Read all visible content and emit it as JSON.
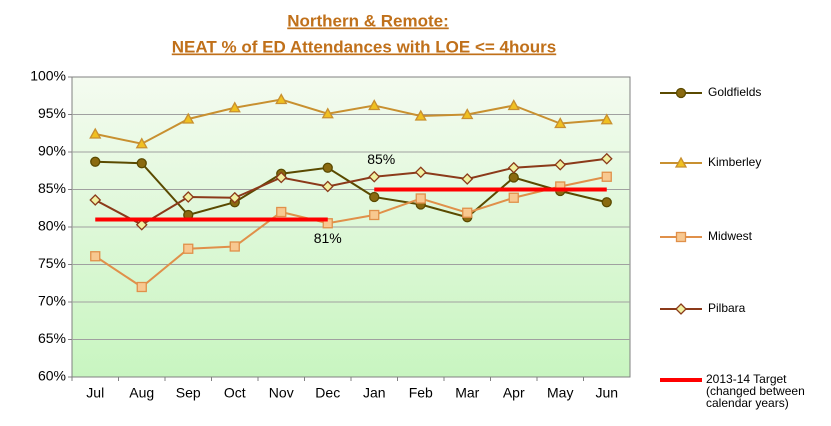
{
  "chart_data": {
    "type": "line",
    "title": [
      "Northern & Remote:",
      "NEAT % of ED Attendances with LOE <= 4hours"
    ],
    "categories": [
      "Jul",
      "Aug",
      "Sep",
      "Oct",
      "Nov",
      "Dec",
      "Jan",
      "Feb",
      "Mar",
      "Apr",
      "May",
      "Jun"
    ],
    "series": [
      {
        "name": "Goldfields",
        "color": "#5a4a00",
        "marker": "circle",
        "marker_fill": "#8a6a10",
        "values": [
          88.7,
          88.5,
          81.6,
          83.3,
          87.1,
          87.9,
          84.0,
          83.0,
          81.3,
          86.6,
          84.8,
          83.3
        ]
      },
      {
        "name": "Kimberley",
        "color": "#c89030",
        "marker": "triangle",
        "marker_fill": "#f0c020",
        "values": [
          92.4,
          91.1,
          94.4,
          95.9,
          97.0,
          95.1,
          96.2,
          94.8,
          95.0,
          96.2,
          93.8,
          94.3
        ]
      },
      {
        "name": "Midwest",
        "color": "#e0904a",
        "marker": "square",
        "marker_fill": "#f8c890",
        "values": [
          76.1,
          72.0,
          77.1,
          77.4,
          82.0,
          80.5,
          81.6,
          83.8,
          81.9,
          83.9,
          85.4,
          86.7
        ]
      },
      {
        "name": "Pilbara",
        "color": "#8b3a1a",
        "marker": "diamond",
        "marker_fill": "#f0f0a0",
        "values": [
          83.6,
          80.3,
          84.0,
          83.9,
          86.6,
          85.4,
          86.7,
          87.3,
          86.4,
          87.9,
          88.3,
          89.1
        ]
      },
      {
        "name": "2013-14 Target (changed between calendar years)",
        "color": "#ff0000",
        "marker": "none",
        "values": [
          81,
          81,
          81,
          81,
          81,
          81,
          85,
          85,
          85,
          85,
          85,
          85
        ],
        "value_labels": [
          null,
          null,
          null,
          null,
          null,
          "81%",
          "85%",
          null,
          null,
          null,
          null,
          null
        ]
      }
    ],
    "ylim": [
      60,
      100
    ],
    "yticks": [
      {
        "value": 60,
        "label": "60%"
      },
      {
        "value": 65,
        "label": "65%"
      },
      {
        "value": 70,
        "label": "70%"
      },
      {
        "value": 75,
        "label": "75%"
      },
      {
        "value": 80,
        "label": "80%"
      },
      {
        "value": 85,
        "label": "85%"
      },
      {
        "value": 90,
        "label": "90%"
      },
      {
        "value": 95,
        "label": "95%"
      },
      {
        "value": 100,
        "label": "100%"
      }
    ],
    "grid": true,
    "legend": "right"
  }
}
